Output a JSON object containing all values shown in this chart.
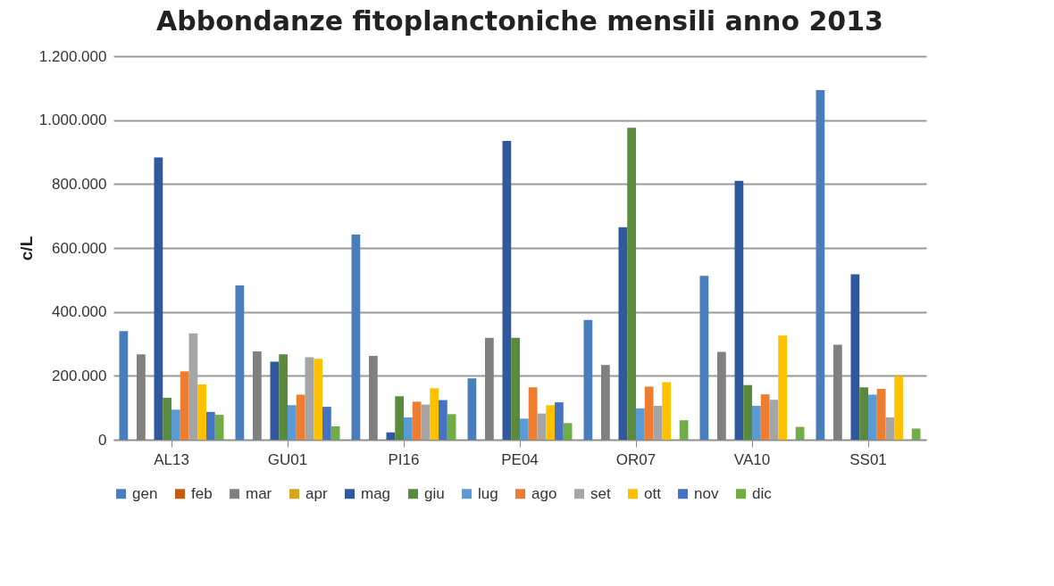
{
  "chart_data": {
    "type": "bar",
    "title": "Abbondanze fitoplanctoniche mensili anno 2013",
    "ylabel": "c/L",
    "categories": [
      "AL13",
      "GU01",
      "PI16",
      "PE04",
      "OR07",
      "VA10",
      "SS01"
    ],
    "series": [
      {
        "name": "gen",
        "color": "#4a7ebb",
        "values": [
          340000,
          483000,
          642000,
          192000,
          375000,
          513000,
          1094000
        ]
      },
      {
        "name": "feb",
        "color": "#c55a11",
        "values": [
          0,
          0,
          0,
          0,
          0,
          0,
          0
        ]
      },
      {
        "name": "mar",
        "color": "#808080",
        "values": [
          267000,
          276000,
          262000,
          319000,
          234000,
          275000,
          297000
        ]
      },
      {
        "name": "apr",
        "color": "#d8a520",
        "values": [
          0,
          0,
          0,
          0,
          0,
          0,
          0
        ]
      },
      {
        "name": "mag",
        "color": "#30589e",
        "values": [
          883000,
          244000,
          23000,
          935000,
          665000,
          810000,
          518000
        ]
      },
      {
        "name": "giu",
        "color": "#5a8a3c",
        "values": [
          131000,
          267000,
          136000,
          319000,
          976000,
          171000,
          164000
        ]
      },
      {
        "name": "lug",
        "color": "#5b9bd5",
        "values": [
          94000,
          108000,
          70000,
          66000,
          98000,
          106000,
          141000
        ]
      },
      {
        "name": "ago",
        "color": "#ed7d31",
        "values": [
          214000,
          141000,
          119000,
          164000,
          166000,
          142000,
          159000
        ]
      },
      {
        "name": "set",
        "color": "#a5a5a5",
        "values": [
          333000,
          258000,
          110000,
          82000,
          106000,
          125000,
          70000
        ]
      },
      {
        "name": "ott",
        "color": "#ffc000",
        "values": [
          173000,
          253000,
          161000,
          108000,
          180000,
          326000,
          199000
        ]
      },
      {
        "name": "nov",
        "color": "#4472c4",
        "values": [
          87000,
          103000,
          124000,
          117000,
          0,
          0,
          0
        ]
      },
      {
        "name": "dic",
        "color": "#70ad47",
        "values": [
          78000,
          42000,
          80000,
          52000,
          61000,
          40000,
          35000
        ]
      }
    ],
    "ylim": [
      0,
      1200000
    ],
    "yticks": [
      0,
      {
        "value": 200000,
        "label": "200.000"
      },
      {
        "value": 400000,
        "label": "400.000"
      },
      {
        "value": 600000,
        "label": "600.000"
      },
      {
        "value": 800000,
        "label": "800.000"
      },
      {
        "value": 1000000,
        "label": "1.000.000"
      },
      {
        "value": 1200000,
        "label": "1.200.000"
      }
    ],
    "grid": "y",
    "legend": "bottom"
  }
}
